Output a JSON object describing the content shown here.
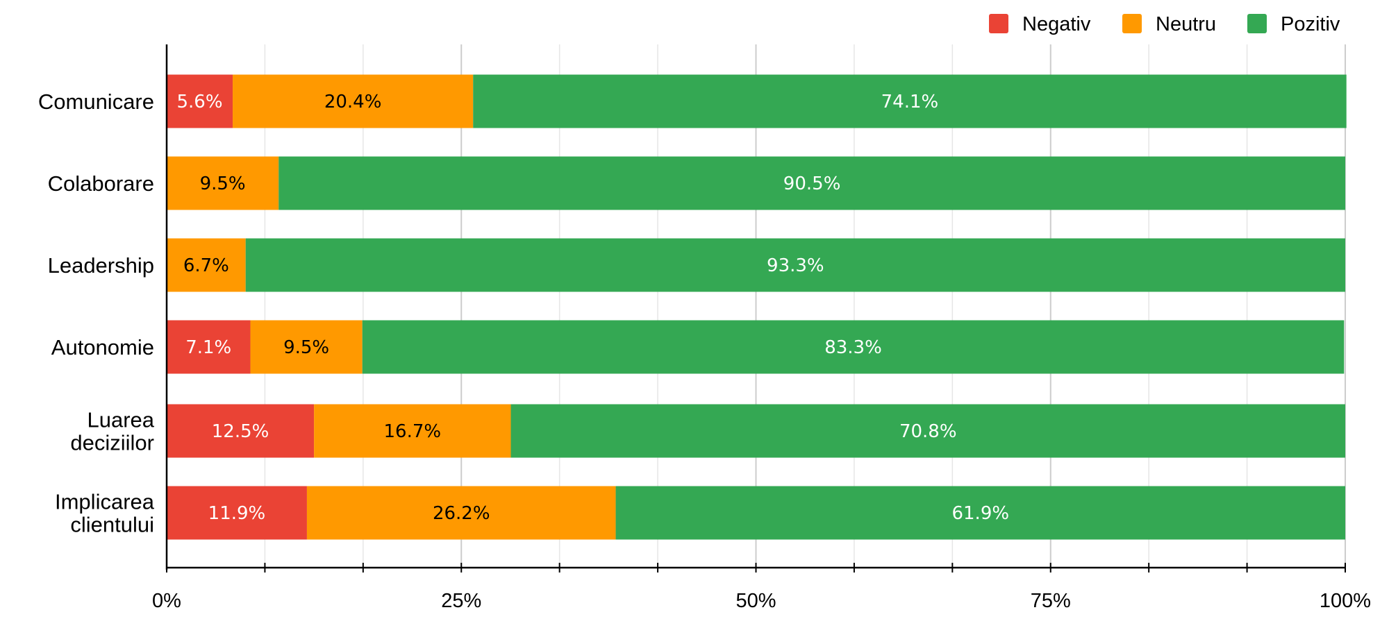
{
  "chart_data": {
    "type": "bar",
    "orientation": "horizontal",
    "stacked": true,
    "title": "",
    "xlabel": "",
    "ylabel": "",
    "xlim": [
      0,
      100
    ],
    "x_ticks": [
      "0%",
      "25%",
      "50%",
      "75%",
      "100%"
    ],
    "grid": true,
    "legend_position": "top-right",
    "categories": [
      [
        "Comunicare"
      ],
      [
        "Colaborare"
      ],
      [
        "Leadership"
      ],
      [
        "Autonomie"
      ],
      [
        "Luarea",
        "deciziilor"
      ],
      [
        "Implicarea",
        "clientului"
      ]
    ],
    "series": [
      {
        "name": "Negativ",
        "color": "#ea4335",
        "label_color": "#ffffff",
        "values": [
          5.6,
          0,
          0,
          7.1,
          12.5,
          11.9
        ],
        "labels": [
          "5.6%",
          "",
          "",
          "7.1%",
          "12.5%",
          "11.9%"
        ]
      },
      {
        "name": "Neutru",
        "color": "#ff9900",
        "label_color": "#000000",
        "values": [
          20.4,
          9.5,
          6.7,
          9.5,
          16.7,
          26.2
        ],
        "labels": [
          "20.4%",
          "9.5%",
          "6.7%",
          "9.5%",
          "16.7%",
          "26.2%"
        ]
      },
      {
        "name": "Pozitiv",
        "color": "#34a853",
        "label_color": "#ffffff",
        "values": [
          74.1,
          90.5,
          93.3,
          83.3,
          70.8,
          61.9
        ],
        "labels": [
          "74.1%",
          "90.5%",
          "93.3%",
          "83.3%",
          "70.8%",
          "61.9%"
        ]
      }
    ]
  }
}
